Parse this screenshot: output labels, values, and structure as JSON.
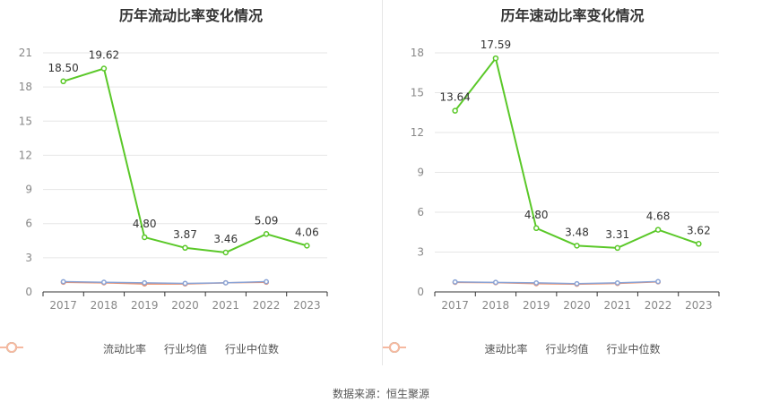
{
  "source": "数据来源：恒生聚源",
  "legend_inactive_color": "#999999",
  "chart_data": [
    {
      "type": "line",
      "title": "历年流动比率变化情况",
      "categories": [
        "2017",
        "2018",
        "2019",
        "2020",
        "2021",
        "2022",
        "2023"
      ],
      "ylim": [
        0,
        21
      ],
      "yticks": [
        0,
        3,
        6,
        9,
        12,
        15,
        18,
        21
      ],
      "grid": true,
      "legend_position": "bottom",
      "series": [
        {
          "name": "流动比率",
          "color": "#5ac828",
          "values": [
            18.5,
            19.62,
            4.8,
            3.87,
            3.46,
            5.09,
            4.06
          ],
          "labels": [
            "18.50",
            "19.62",
            "4.80",
            "3.87",
            "3.46",
            "5.09",
            "4.06"
          ]
        },
        {
          "name": "行业均值",
          "color": "#8aa4d6",
          "values": [
            0.9,
            0.85,
            0.8,
            0.75,
            0.8,
            0.9,
            null
          ]
        },
        {
          "name": "行业中位数",
          "color": "#f08c64",
          "values": [
            0.85,
            0.8,
            0.7,
            0.7,
            0.8,
            0.85,
            null
          ]
        }
      ]
    },
    {
      "type": "line",
      "title": "历年速动比率变化情况",
      "categories": [
        "2017",
        "2018",
        "2019",
        "2020",
        "2021",
        "2022",
        "2023"
      ],
      "ylim": [
        0,
        18
      ],
      "yticks": [
        0,
        3,
        6,
        9,
        12,
        15,
        18
      ],
      "grid": true,
      "legend_position": "bottom",
      "series": [
        {
          "name": "速动比率",
          "color": "#5ac828",
          "values": [
            13.64,
            17.59,
            4.8,
            3.48,
            3.31,
            4.68,
            3.62
          ],
          "labels": [
            "13.64",
            "17.59",
            "4.80",
            "3.48",
            "3.31",
            "4.68",
            "3.62"
          ]
        },
        {
          "name": "行业均值",
          "color": "#8aa4d6",
          "values": [
            0.75,
            0.72,
            0.68,
            0.62,
            0.68,
            0.78,
            null
          ]
        },
        {
          "name": "行业中位数",
          "color": "#f08c64",
          "values": [
            0.72,
            0.7,
            0.62,
            0.58,
            0.64,
            0.76,
            null
          ]
        }
      ]
    }
  ]
}
